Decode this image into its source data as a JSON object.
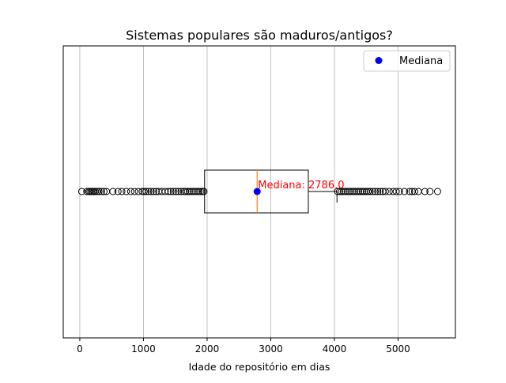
{
  "chart_data": {
    "type": "boxplot",
    "orientation": "horizontal",
    "title": "Sistemas populares são maduros/antigos?",
    "xlabel": "Idade do repositório em dias",
    "ylabel": "",
    "xlim": [
      -260,
      5900
    ],
    "xticks": [
      0,
      1000,
      2000,
      3000,
      4000,
      5000
    ],
    "xtick_labels": [
      "0",
      "1000",
      "2000",
      "3000",
      "4000",
      "5000"
    ],
    "grid": {
      "x": true,
      "y": false
    },
    "box": {
      "q1": 1960,
      "median": 2786,
      "q3": 3590,
      "whisker_low": 1960,
      "whisker_high": 4040
    },
    "outliers_low": [
      30,
      110,
      140,
      160,
      180,
      200,
      220,
      240,
      270,
      300,
      340,
      380,
      420,
      520,
      600,
      660,
      730,
      800,
      860,
      920,
      980,
      1010,
      1040,
      1080,
      1120,
      1160,
      1200,
      1240,
      1290,
      1340,
      1390,
      1430,
      1470,
      1510,
      1550,
      1590,
      1630,
      1660,
      1690,
      1720,
      1750,
      1780,
      1810,
      1840,
      1870,
      1900,
      1930,
      1950
    ],
    "outliers_high": [
      4050,
      4080,
      4110,
      4140,
      4170,
      4200,
      4230,
      4260,
      4290,
      4320,
      4350,
      4380,
      4410,
      4440,
      4470,
      4500,
      4530,
      4560,
      4600,
      4640,
      4680,
      4720,
      4760,
      4800,
      4860,
      4920,
      4970,
      5020,
      5100,
      5180,
      5220,
      5260,
      5320,
      5420,
      5500,
      5620
    ],
    "median_marker": {
      "x": 2786,
      "label": "Mediana: 2786.0",
      "color": "#ff0000",
      "marker_color": "#0000ff"
    },
    "legend": {
      "position": "top-right",
      "entries": [
        {
          "label": "Mediana",
          "color": "#0000ff",
          "marker": "circle"
        }
      ]
    },
    "colors": {
      "median_line": "#ff7f0e",
      "grid": "#b0b0b0",
      "box": "#000000"
    }
  }
}
